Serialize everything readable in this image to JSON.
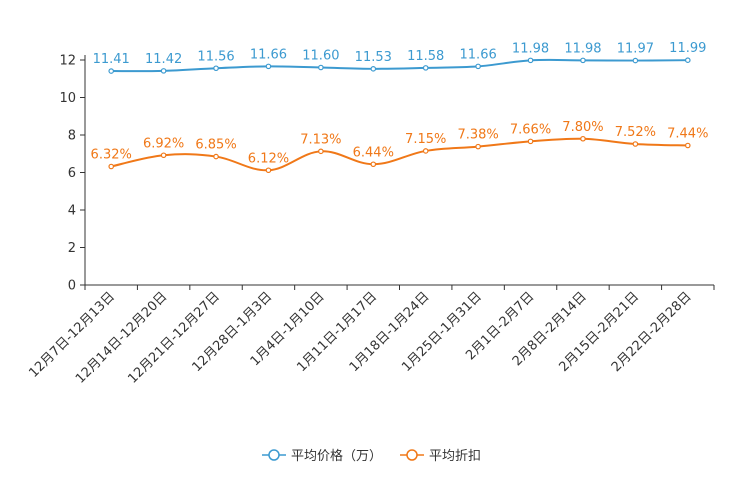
{
  "chart_data": {
    "type": "line",
    "title": "",
    "xlabel": "",
    "ylabel": "",
    "ylim": [
      0,
      12
    ],
    "yticks": [
      0,
      2,
      4,
      6,
      8,
      10,
      12
    ],
    "grid": false,
    "legend_position": "bottom-center",
    "categories": [
      "12月7日-12月13日",
      "12月14日-12月20日",
      "12月21日-12月27日",
      "12月28日-1月3日",
      "1月4日-1月10日",
      "1月11日-1月17日",
      "1月18日-1月24日",
      "1月25日-1月31日",
      "2月1日-2月7日",
      "2月8日-2月14日",
      "2月15日-2月21日",
      "2月22日-2月28日"
    ],
    "series": [
      {
        "name": "平均价格（万）",
        "color": "#3c9ad0",
        "values": [
          11.41,
          11.42,
          11.56,
          11.66,
          11.6,
          11.53,
          11.58,
          11.66,
          11.98,
          11.98,
          11.97,
          11.99
        ],
        "labels": [
          "11.41",
          "11.42",
          "11.56",
          "11.66",
          "11.60",
          "11.53",
          "11.58",
          "11.66",
          "11.98",
          "11.98",
          "11.97",
          "11.99"
        ]
      },
      {
        "name": "平均折扣",
        "color": "#f07818",
        "values": [
          6.32,
          6.92,
          6.85,
          6.12,
          7.13,
          6.44,
          7.15,
          7.38,
          7.66,
          7.8,
          7.52,
          7.44
        ],
        "labels": [
          "6.32%",
          "6.92%",
          "6.85%",
          "6.12%",
          "7.13%",
          "6.44%",
          "7.15%",
          "7.38%",
          "7.66%",
          "7.80%",
          "7.52%",
          "7.44%"
        ]
      }
    ]
  }
}
